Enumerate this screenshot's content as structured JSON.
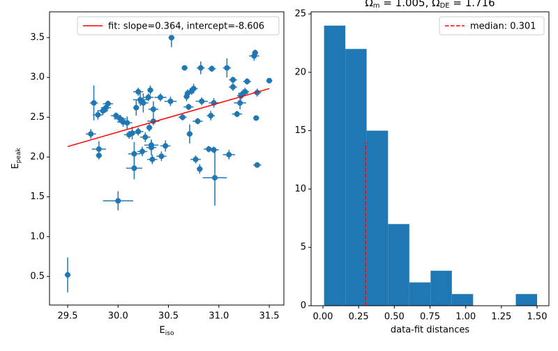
{
  "chart_data": [
    {
      "type": "scatter",
      "xlabel": "E",
      "xlabel_sub": "iso",
      "ylabel": "E",
      "ylabel_sub": "peak",
      "xlim": [
        29.32,
        31.645
      ],
      "ylim": [
        0.141,
        3.824
      ],
      "xticks": [
        29.5,
        {
          "value": 30.0,
          "label": "30.0"
        },
        30.5,
        {
          "value": 31.0,
          "label": "31.0"
        },
        31.5
      ],
      "yticks": [
        0.5,
        {
          "value": 1.0,
          "label": "1.0"
        },
        1.5,
        {
          "value": 2.0,
          "label": "2.0"
        },
        2.5,
        {
          "value": 3.0,
          "label": "3.0"
        },
        3.5
      ],
      "legend": "upper right",
      "series": [
        {
          "color": "#1f77b4",
          "x": [
            29.5,
            30.0,
            29.73,
            29.76,
            29.81,
            29.81,
            29.8,
            29.85,
            29.88,
            29.9,
            29.98,
            30.02,
            30.05,
            30.09,
            30.11,
            30.14,
            30.16,
            30.16,
            30.18,
            30.2,
            30.2,
            30.22,
            30.25,
            30.24,
            30.27,
            30.3,
            30.31,
            30.32,
            30.33,
            30.33,
            30.34,
            30.35,
            30.35,
            30.42,
            30.43,
            30.47,
            30.52,
            30.53,
            30.64,
            30.66,
            30.68,
            30.69,
            30.7,
            30.71,
            30.73,
            30.75,
            30.77,
            30.79,
            30.81,
            30.82,
            30.83,
            30.9,
            30.92,
            30.93,
            30.95,
            30.95,
            30.96,
            31.08,
            31.1,
            31.14,
            31.14,
            31.18,
            31.21,
            31.22,
            31.24,
            31.26,
            31.28,
            31.35,
            31.36,
            31.37,
            31.38,
            31.38,
            31.5
          ],
          "values": [
            0.52,
            1.45,
            2.29,
            2.68,
            2.1,
            2.02,
            2.53,
            2.58,
            2.62,
            2.67,
            2.52,
            2.48,
            2.44,
            2.43,
            2.28,
            2.3,
            1.86,
            2.04,
            2.62,
            2.32,
            2.82,
            2.72,
            2.68,
            2.07,
            2.25,
            2.75,
            2.37,
            2.84,
            2.15,
            2.12,
            1.97,
            2.6,
            2.45,
            2.75,
            2.01,
            2.14,
            2.7,
            3.5,
            2.5,
            3.12,
            2.76,
            2.8,
            2.63,
            2.29,
            2.83,
            2.86,
            1.97,
            2.45,
            1.85,
            3.12,
            2.7,
            2.1,
            2.52,
            3.11,
            2.68,
            2.09,
            1.74,
            3.12,
            2.03,
            2.88,
            2.97,
            2.54,
            2.68,
            2.77,
            2.8,
            2.82,
            2.95,
            3.27,
            3.31,
            2.49,
            2.81,
            1.9,
            2.96
          ],
          "xerr": [
            0.03,
            0.15,
            0.05,
            0.04,
            0.07,
            0.03,
            0.05,
            0.05,
            0.05,
            0.05,
            0.05,
            0.06,
            0.06,
            0.05,
            0.05,
            0.05,
            0.08,
            0.06,
            0.03,
            0.05,
            0.05,
            0.07,
            0.05,
            0.05,
            0.05,
            0.05,
            0.03,
            0.03,
            0.07,
            0.05,
            0.05,
            0.05,
            0.06,
            0.06,
            0.05,
            0.05,
            0.06,
            0.03,
            0.04,
            0.03,
            0.03,
            0.03,
            0.05,
            0.03,
            0.03,
            0.04,
            0.05,
            0.05,
            0.03,
            0.04,
            0.06,
            0.05,
            0.04,
            0.04,
            0.05,
            0.05,
            0.12,
            0.04,
            0.06,
            0.04,
            0.04,
            0.05,
            0.06,
            0.04,
            0.05,
            0.04,
            0.04,
            0.05,
            0.03,
            0.03,
            0.04,
            0.04,
            0.03
          ],
          "yerr": [
            0.22,
            0.12,
            0.06,
            0.22,
            0.1,
            0.05,
            0.06,
            0.05,
            0.06,
            0.04,
            0.04,
            0.05,
            0.06,
            0.08,
            0.05,
            0.08,
            0.14,
            0.15,
            0.1,
            0.05,
            0.05,
            0.08,
            0.12,
            0.06,
            0.06,
            0.05,
            0.05,
            0.06,
            0.06,
            0.1,
            0.06,
            0.1,
            0.05,
            0.05,
            0.06,
            0.07,
            0.06,
            0.12,
            0.04,
            0.03,
            0.06,
            0.05,
            0.04,
            0.12,
            0.05,
            0.06,
            0.05,
            0.04,
            0.06,
            0.08,
            0.05,
            0.04,
            0.06,
            0.04,
            0.06,
            0.04,
            0.35,
            0.12,
            0.06,
            0.05,
            0.04,
            0.04,
            0.08,
            0.05,
            0.05,
            0.05,
            0.04,
            0.06,
            0.04,
            0.03,
            0.05,
            0.03,
            0.03
          ]
        }
      ],
      "fit": {
        "name": "fit: slope=0.364, intercept=-8.606",
        "color": "#ff0000",
        "x": [
          29.5,
          31.5
        ],
        "values": [
          2.132,
          2.86
        ]
      }
    },
    {
      "type": "histogram",
      "title_segments": [
        "Ω",
        "m",
        " = 1.005, Ω",
        "DE",
        " = 1.716"
      ],
      "xlabel": "data-fit distances",
      "xlim": [
        -0.083,
        1.583
      ],
      "ylim": [
        0,
        25.18
      ],
      "xticks": [
        {
          "value": 0,
          "label": "0.00"
        },
        {
          "value": 0.25,
          "label": "0.25"
        },
        {
          "value": 0.5,
          "label": "0.50"
        },
        {
          "value": 0.75,
          "label": "0.75"
        },
        {
          "value": 1.0,
          "label": "1.00"
        },
        {
          "value": 1.25,
          "label": "1.25"
        },
        {
          "value": 1.5,
          "label": "1.50"
        }
      ],
      "yticks": [
        0,
        5,
        10,
        15,
        20,
        25
      ],
      "legend": "upper right",
      "color": "#1f77b4",
      "bins": [
        0.008,
        0.157,
        0.306,
        0.456,
        0.605,
        0.754,
        0.903,
        1.052,
        1.201,
        1.351,
        1.5
      ],
      "values": [
        24,
        22,
        15,
        7,
        2,
        3,
        1,
        0,
        0,
        1
      ],
      "median": {
        "name": "median: 0.301",
        "color": "#ff0000",
        "x": 0.301,
        "ymax": 14
      }
    }
  ]
}
